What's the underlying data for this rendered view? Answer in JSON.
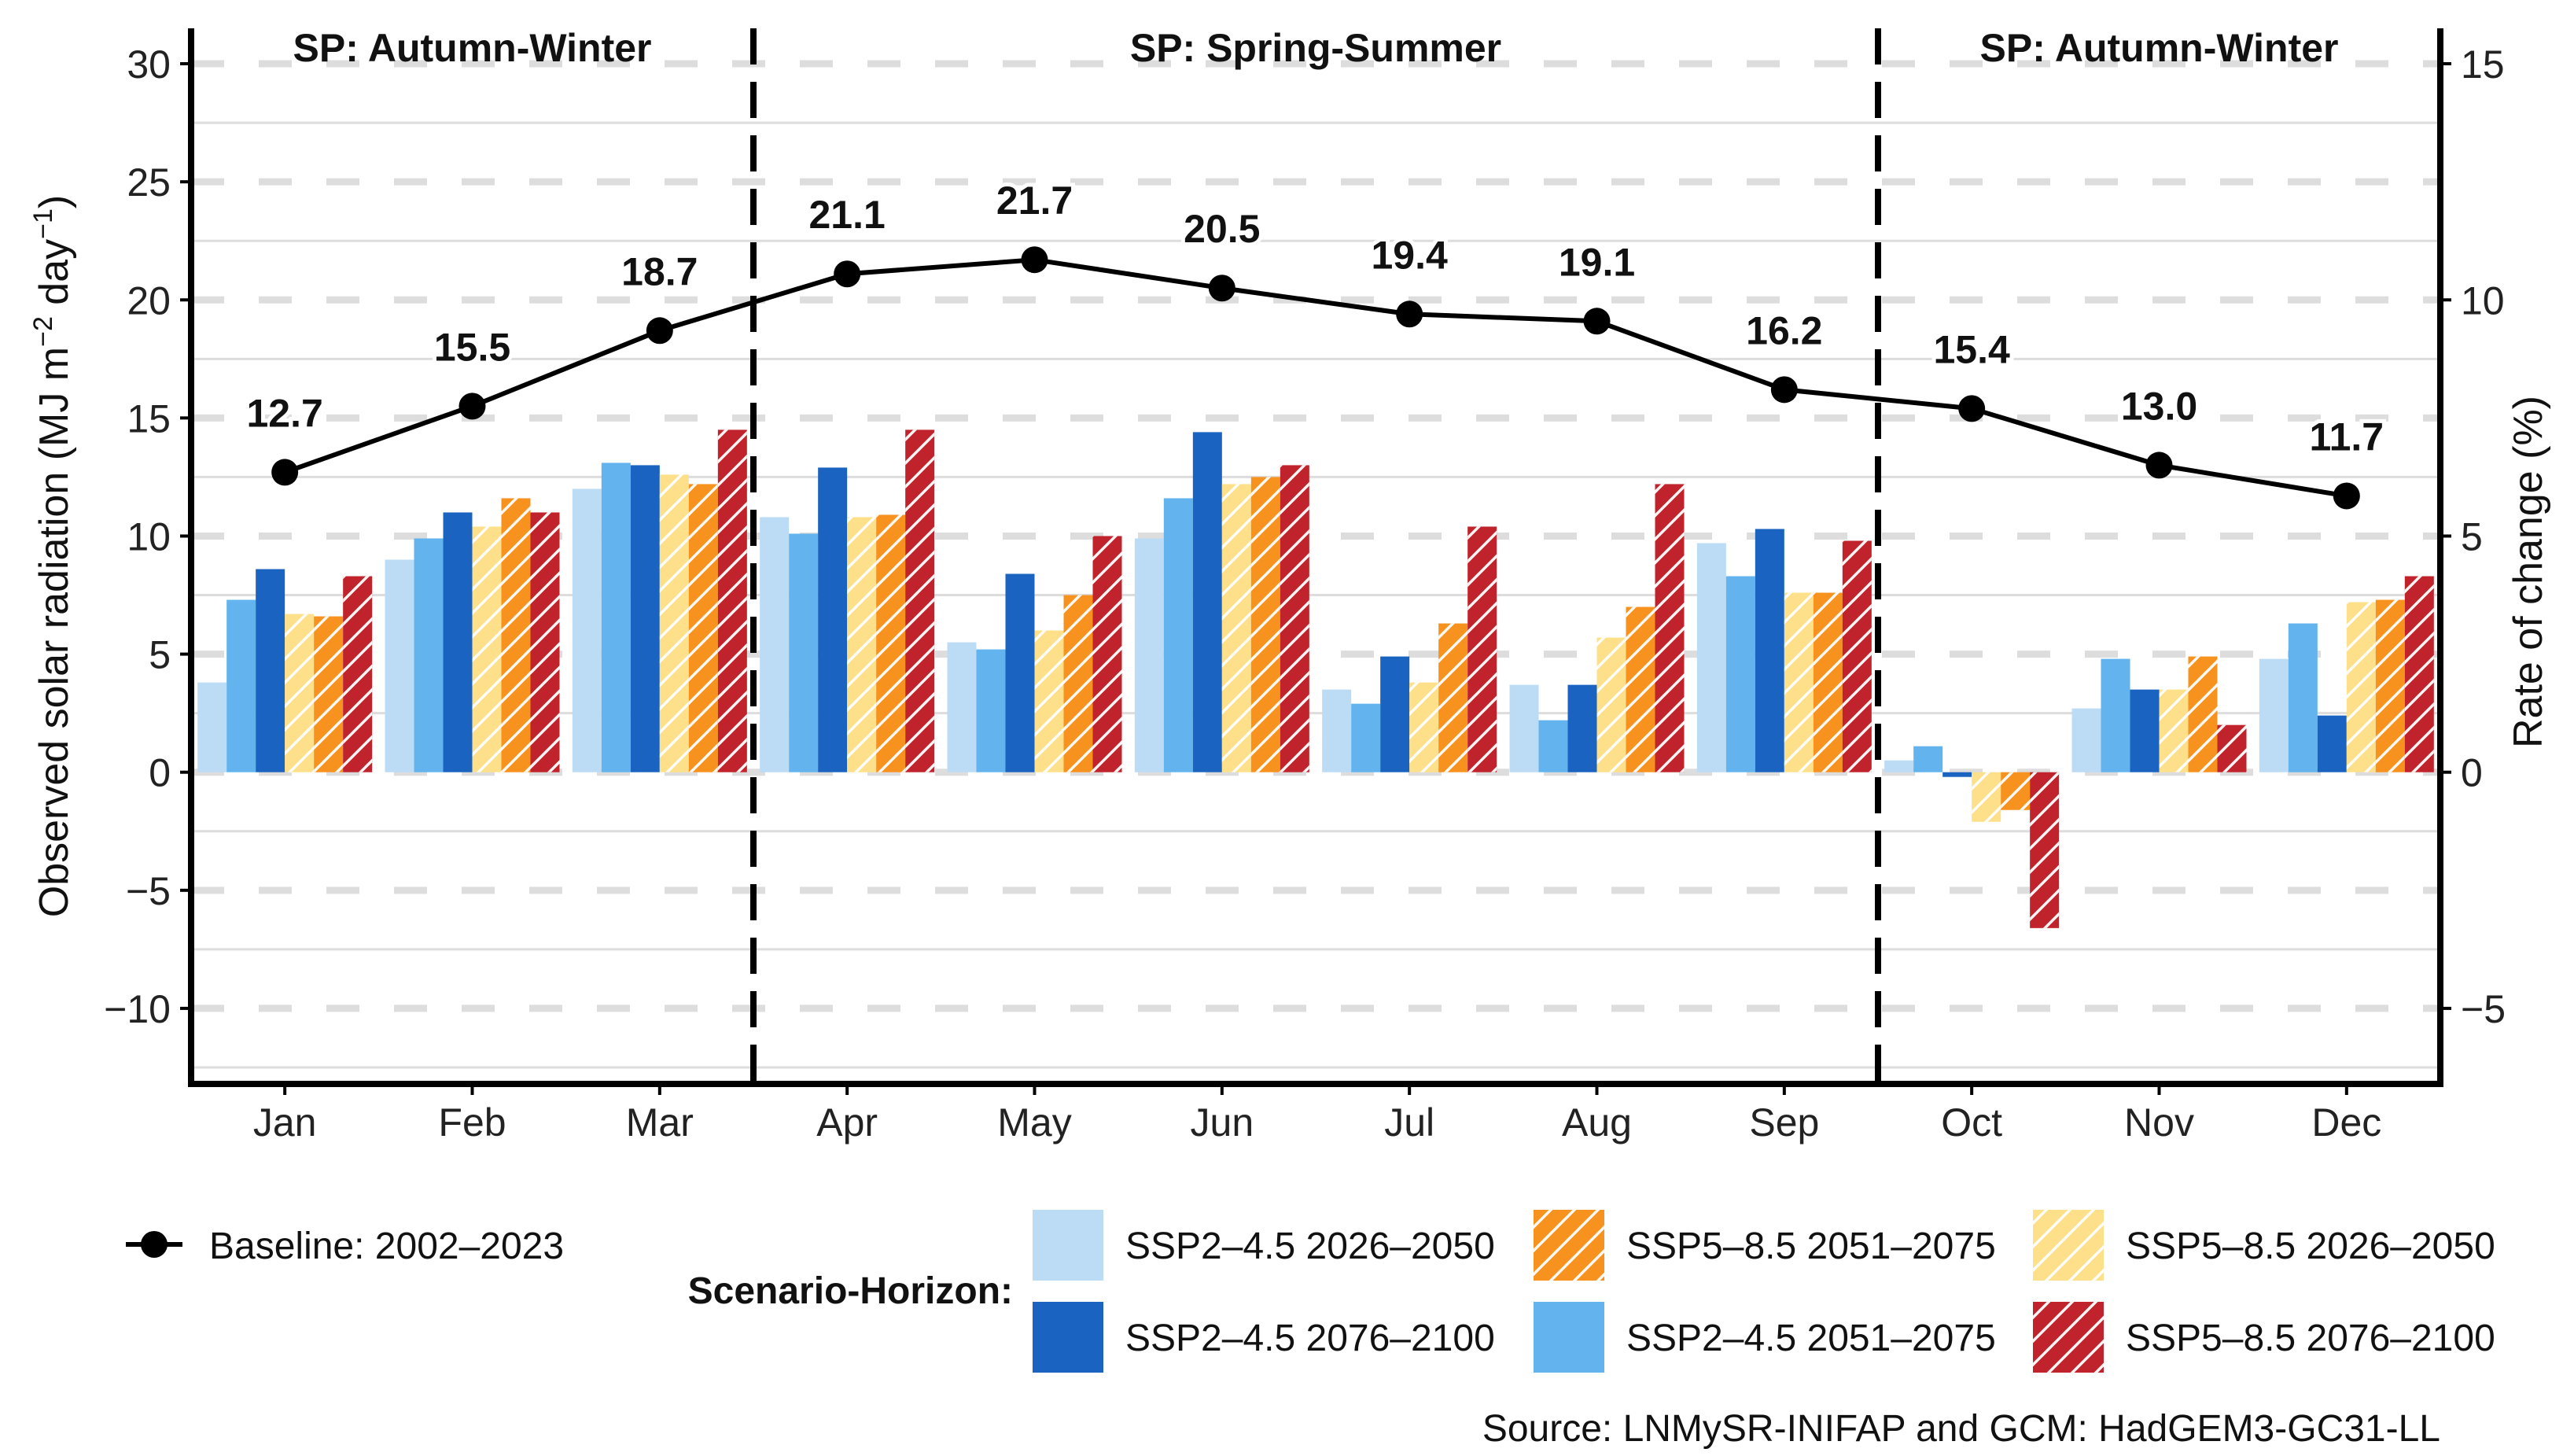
{
  "chart_data": {
    "type": "bar",
    "categories": [
      "Jan",
      "Feb",
      "Mar",
      "Apr",
      "May",
      "Jun",
      "Jul",
      "Aug",
      "Sep",
      "Oct",
      "Nov",
      "Dec"
    ],
    "ylabel_left": "Observed solar radiation (MJ m",
    "ylabel_left_sup1": "−2",
    "ylabel_left_mid": " day",
    "ylabel_left_sup2": "−1",
    "ylabel_left_end": ")",
    "ylabel_right": "Rate of change (%)",
    "left_ylim": [
      -13.2,
      31.5
    ],
    "left_ticks": [
      "30",
      "25",
      "20",
      "15",
      "10",
      "5",
      "0",
      "−5",
      "−10"
    ],
    "left_tick_values": [
      30,
      25,
      20,
      15,
      10,
      5,
      0,
      -5,
      -10
    ],
    "right_ylim": [
      -6.6,
      15.75
    ],
    "right_ticks": [
      "15",
      "10",
      "5",
      "0",
      "−5"
    ],
    "right_tick_values": [
      15,
      10,
      5,
      0,
      -5
    ],
    "section_labels": [
      "SP: Autumn-Winter",
      "SP: Spring-Summer",
      "SP: Autumn-Winter"
    ],
    "dividers_after": [
      3,
      9
    ],
    "baseline": {
      "name": "Baseline: 2002–2023",
      "values": [
        12.7,
        15.5,
        18.7,
        21.1,
        21.7,
        20.5,
        19.4,
        19.1,
        16.2,
        15.4,
        13.0,
        11.7
      ],
      "labels": [
        "12.7",
        "15.5",
        "18.7",
        "21.1",
        "21.7",
        "20.5",
        "19.4",
        "19.1",
        "16.2",
        "15.4",
        "13.0",
        "11.7"
      ]
    },
    "legend_title": "Scenario-Horizon:",
    "series": [
      {
        "name": "SSP2–4.5 2026–2050",
        "color": "#bcdcf6",
        "pattern": "none",
        "values": [
          3.8,
          9.0,
          12.0,
          10.8,
          5.5,
          9.9,
          3.5,
          3.7,
          9.7,
          0.5,
          2.7,
          4.8
        ]
      },
      {
        "name": "SSP2–4.5 2051–2075",
        "color": "#63b3ee",
        "pattern": "none",
        "values": [
          7.3,
          9.9,
          13.1,
          10.1,
          5.2,
          11.6,
          2.9,
          2.2,
          8.3,
          1.1,
          4.8,
          6.3
        ]
      },
      {
        "name": "SSP2–4.5 2076–2100",
        "color": "#1b63c0",
        "pattern": "none",
        "values": [
          8.6,
          11.0,
          13.0,
          12.9,
          8.4,
          14.4,
          4.9,
          3.7,
          10.3,
          -0.2,
          3.5,
          2.4
        ]
      },
      {
        "name": "SSP5–8.5 2026–2050",
        "color": "#fde089",
        "pattern": "hatch",
        "values": [
          6.7,
          10.4,
          12.6,
          10.8,
          6.0,
          12.2,
          3.8,
          5.7,
          7.6,
          -2.1,
          3.5,
          7.2
        ]
      },
      {
        "name": "SSP5–8.5 2051–2075",
        "color": "#f7921e",
        "pattern": "hatch",
        "values": [
          6.6,
          11.6,
          12.2,
          10.9,
          7.5,
          12.5,
          6.3,
          7.0,
          7.6,
          -1.6,
          4.9,
          7.3
        ]
      },
      {
        "name": "SSP5–8.5 2076–2100",
        "color": "#c0232b",
        "pattern": "hatch",
        "values": [
          8.3,
          11.0,
          14.5,
          14.5,
          10.0,
          13.0,
          10.4,
          12.2,
          9.8,
          -6.6,
          2.0,
          8.3
        ]
      }
    ],
    "source": "Source: LNMySR-INIFAP and GCM: HadGEM3-GC31-LL"
  }
}
